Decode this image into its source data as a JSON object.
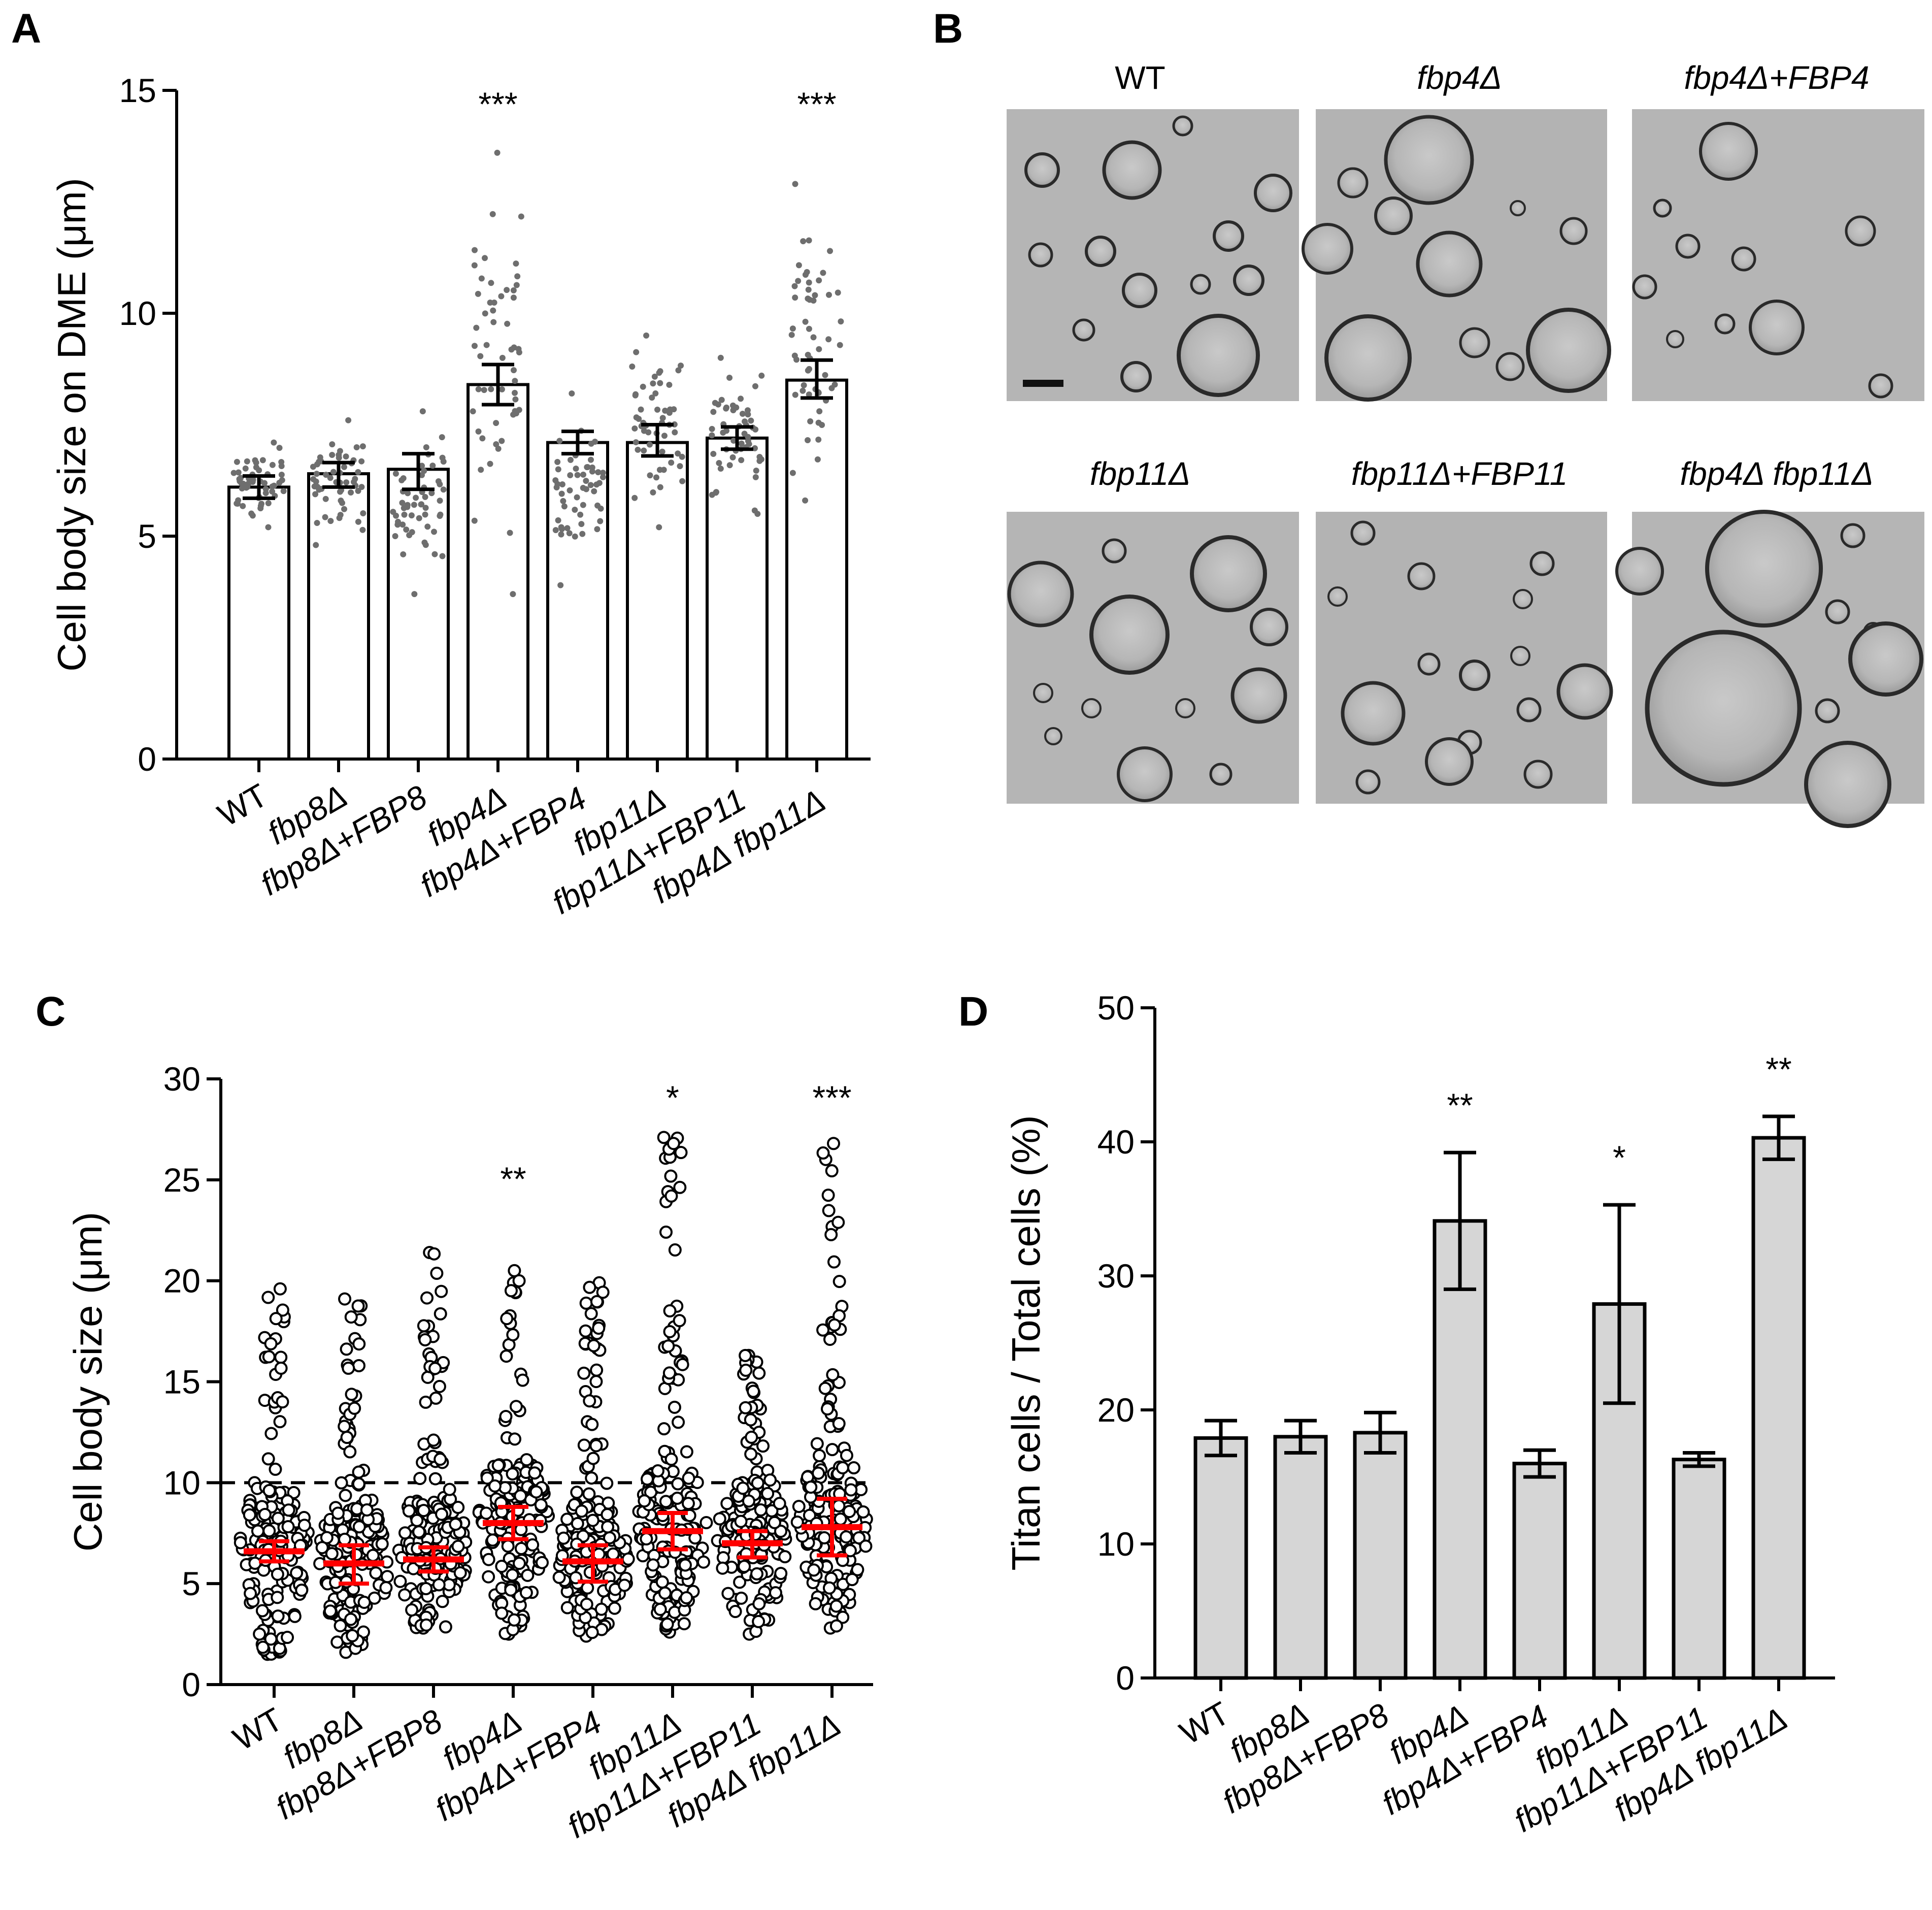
{
  "panel_labels": {
    "A": "A",
    "B": "B",
    "C": "C",
    "D": "D"
  },
  "categories": [
    "WT",
    "fbp8Δ",
    "fbp8Δ+FBP8",
    "fbp4Δ",
    "fbp4Δ+FBP4",
    "fbp11Δ",
    "fbp11Δ+FBP11",
    "fbp4Δ fbp11Δ"
  ],
  "micrograph_labels": [
    "WT",
    "fbp4Δ",
    "fbp4Δ+FBP4",
    "fbp11Δ",
    "fbp11Δ+FBP11",
    "fbp4Δ fbp11Δ"
  ],
  "chart_data": [
    {
      "panel": "A",
      "type": "bar",
      "ylabel": "Cell body size on DME (μm)",
      "ylim": [
        0,
        15
      ],
      "yticks": [
        0,
        5,
        10,
        15
      ],
      "categories": [
        "WT",
        "fbp8Δ",
        "fbp8Δ+FBP8",
        "fbp4Δ",
        "fbp4Δ+FBP4",
        "fbp11Δ",
        "fbp11Δ+FBP11",
        "fbp4Δ fbp11Δ"
      ],
      "values": [
        6.1,
        6.4,
        6.5,
        8.4,
        7.1,
        7.1,
        7.2,
        8.5
      ],
      "error_low": [
        5.85,
        6.1,
        6.05,
        7.95,
        6.85,
        6.8,
        6.95,
        8.1
      ],
      "error_high": [
        6.35,
        6.65,
        6.85,
        8.85,
        7.35,
        7.5,
        7.45,
        8.95
      ],
      "points_range": [
        [
          5.2,
          7.1
        ],
        [
          4.8,
          7.6
        ],
        [
          3.7,
          7.8
        ],
        [
          3.7,
          13.6
        ],
        [
          3.9,
          8.2
        ],
        [
          5.2,
          9.5
        ],
        [
          5.5,
          9.0
        ],
        [
          5.8,
          12.9
        ]
      ],
      "significance": [
        "",
        "",
        "",
        "***",
        "",
        "",
        "",
        "***"
      ]
    },
    {
      "panel": "C",
      "type": "scatter",
      "ylabel": "Cell body size (μm)",
      "ylim": [
        0,
        30
      ],
      "yticks": [
        0,
        5,
        10,
        15,
        20,
        25,
        30
      ],
      "threshold": 10,
      "categories": [
        "WT",
        "fbp8Δ",
        "fbp8Δ+FBP8",
        "fbp4Δ",
        "fbp4Δ+FBP4",
        "fbp11Δ",
        "fbp11Δ+FBP11",
        "fbp4Δ fbp11Δ"
      ],
      "median": [
        6.6,
        6.0,
        6.2,
        8.0,
        6.1,
        7.6,
        7.0,
        7.8
      ],
      "error_low": [
        6.1,
        5.0,
        5.6,
        7.2,
        5.1,
        6.7,
        6.3,
        6.4
      ],
      "error_high": [
        7.1,
        6.9,
        6.8,
        8.8,
        6.9,
        8.5,
        7.6,
        9.2
      ],
      "points_range": [
        [
          1.5,
          19.6
        ],
        [
          1.6,
          19.1
        ],
        [
          2.8,
          21.4
        ],
        [
          2.5,
          20.5
        ],
        [
          2.4,
          19.9
        ],
        [
          2.6,
          27.1
        ],
        [
          2.5,
          16.3
        ],
        [
          2.8,
          26.8
        ]
      ],
      "significance": [
        "",
        "",
        "",
        "**",
        "",
        "*",
        "",
        "***"
      ]
    },
    {
      "panel": "D",
      "type": "bar",
      "ylabel": "Titan cells / Total cells (%)",
      "ylim": [
        0,
        50
      ],
      "yticks": [
        0,
        10,
        20,
        30,
        40,
        50
      ],
      "categories": [
        "WT",
        "fbp8Δ",
        "fbp8Δ+FBP8",
        "fbp4Δ",
        "fbp4Δ+FBP4",
        "fbp11Δ",
        "fbp11Δ+FBP11",
        "fbp4Δ fbp11Δ"
      ],
      "values": [
        17.9,
        18.0,
        18.3,
        34.1,
        16.0,
        27.9,
        16.3,
        40.3
      ],
      "error_low": [
        16.6,
        16.8,
        16.8,
        29.0,
        15.0,
        20.5,
        15.8,
        38.7
      ],
      "error_high": [
        19.2,
        19.2,
        19.8,
        39.2,
        17.0,
        35.3,
        16.8,
        41.9
      ],
      "significance": [
        "",
        "",
        "",
        "**",
        "",
        "*",
        "",
        "**"
      ]
    }
  ]
}
